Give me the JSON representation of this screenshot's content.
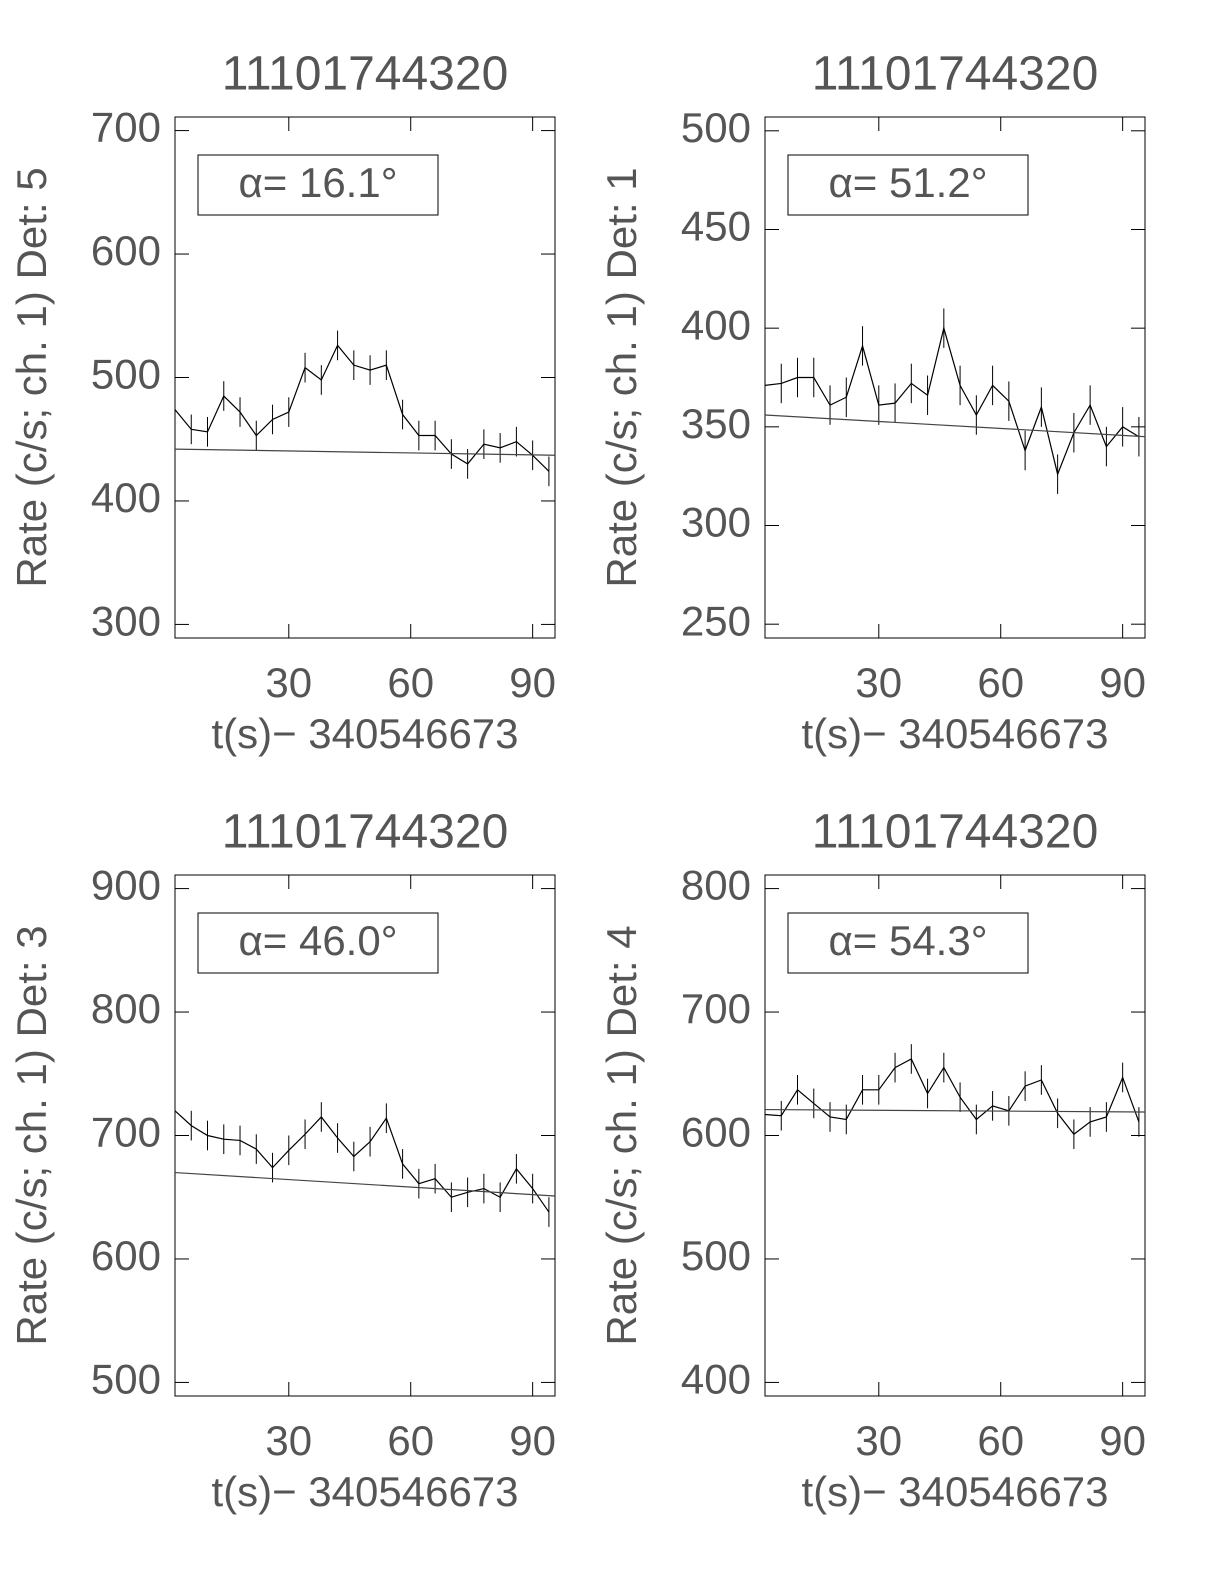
{
  "chart_data": [
    {
      "type": "line",
      "title": "11101744320",
      "x_label": "t(s)− 340546673",
      "y_label": "Rate (c/s; ch. 1) Det: 5",
      "annotation": "α=  16.1°",
      "x": [
        2,
        6,
        10,
        14,
        18,
        22,
        26,
        30,
        34,
        38,
        42,
        46,
        50,
        54,
        58,
        62,
        66,
        70,
        74,
        78,
        82,
        86,
        90,
        94
      ],
      "series": [
        {
          "color": "#000000",
          "values": [
            474,
            458,
            456,
            485,
            472,
            453,
            466,
            472,
            508,
            498,
            526,
            510,
            506,
            510,
            470,
            453,
            453,
            438,
            430,
            446,
            443,
            448,
            437,
            424
          ],
          "errors": [
            12,
            12,
            12,
            12,
            12,
            12,
            12,
            12,
            12,
            12,
            12,
            12,
            12,
            12,
            12,
            12,
            12,
            12,
            12,
            12,
            12,
            12,
            12,
            12
          ]
        },
        {
          "color": "#444444",
          "x": [
            2,
            95.5
          ],
          "values": [
            442,
            437
          ]
        }
      ],
      "xlim": [
        2,
        95.5
      ],
      "ylim": [
        289,
        711
      ],
      "xticks": [
        30,
        60,
        90
      ],
      "yticks": [
        300,
        400,
        500,
        600,
        700
      ]
    },
    {
      "type": "line",
      "title": "11101744320",
      "x_label": "t(s)− 340546673",
      "y_label": "Rate (c/s; ch. 1) Det: 1",
      "annotation": "α=  51.2°",
      "x": [
        2,
        6,
        10,
        14,
        18,
        22,
        26,
        30,
        34,
        38,
        42,
        46,
        50,
        54,
        58,
        62,
        66,
        70,
        74,
        78,
        82,
        86,
        90,
        94
      ],
      "series": [
        {
          "color": "#000000",
          "values": [
            371,
            372,
            375,
            375,
            361,
            365,
            391,
            361,
            362,
            372,
            366,
            400,
            371,
            356,
            371,
            363,
            338,
            360,
            326,
            347,
            361,
            340,
            350,
            345
          ],
          "errors": [
            10,
            10,
            10,
            10,
            10,
            10,
            10,
            10,
            10,
            10,
            10,
            10,
            10,
            10,
            10,
            10,
            10,
            10,
            10,
            10,
            10,
            10,
            10,
            10
          ]
        },
        {
          "color": "#444444",
          "x": [
            2,
            95.5
          ],
          "values": [
            356,
            345
          ]
        }
      ],
      "xlim": [
        2,
        95.5
      ],
      "ylim": [
        243,
        507
      ],
      "xticks": [
        30,
        60,
        90
      ],
      "yticks": [
        250,
        300,
        350,
        400,
        450,
        500
      ]
    },
    {
      "type": "line",
      "title": "11101744320",
      "x_label": "t(s)− 340546673",
      "y_label": "Rate (c/s; ch. 1) Det: 3",
      "annotation": "α=  46.0°",
      "x": [
        2,
        6,
        10,
        14,
        18,
        22,
        26,
        30,
        34,
        38,
        42,
        46,
        50,
        54,
        58,
        62,
        66,
        70,
        74,
        78,
        82,
        86,
        90,
        94
      ],
      "series": [
        {
          "color": "#000000",
          "values": [
            720,
            708,
            700,
            697,
            696,
            689,
            674,
            688,
            701,
            715,
            698,
            683,
            695,
            714,
            677,
            661,
            665,
            650,
            654,
            657,
            650,
            673,
            657,
            638
          ],
          "errors": [
            12,
            12,
            12,
            12,
            12,
            12,
            12,
            12,
            12,
            12,
            12,
            12,
            12,
            12,
            12,
            12,
            12,
            12,
            12,
            12,
            12,
            12,
            12,
            12
          ]
        },
        {
          "color": "#444444",
          "x": [
            2,
            95.5
          ],
          "values": [
            670,
            651
          ]
        }
      ],
      "xlim": [
        2,
        95.5
      ],
      "ylim": [
        489,
        911
      ],
      "xticks": [
        30,
        60,
        90
      ],
      "yticks": [
        500,
        600,
        700,
        800,
        900
      ]
    },
    {
      "type": "line",
      "title": "11101744320",
      "x_label": "t(s)− 340546673",
      "y_label": "Rate (c/s; ch. 1) Det: 4",
      "annotation": "α=  54.3°",
      "x": [
        2,
        6,
        10,
        14,
        18,
        22,
        26,
        30,
        34,
        38,
        42,
        46,
        50,
        54,
        58,
        62,
        66,
        70,
        74,
        78,
        82,
        86,
        90,
        94
      ],
      "series": [
        {
          "color": "#000000",
          "values": [
            617,
            616,
            637,
            626,
            615,
            613,
            637,
            637,
            655,
            662,
            634,
            655,
            631,
            613,
            624,
            620,
            640,
            645,
            618,
            601,
            611,
            615,
            647,
            611
          ],
          "errors": [
            12,
            12,
            12,
            12,
            12,
            12,
            12,
            12,
            12,
            12,
            12,
            12,
            12,
            12,
            12,
            12,
            12,
            12,
            12,
            12,
            12,
            12,
            12,
            12
          ]
        },
        {
          "color": "#444444",
          "x": [
            2,
            95.5
          ],
          "values": [
            621,
            619
          ]
        }
      ],
      "xlim": [
        2,
        95.5
      ],
      "ylim": [
        389,
        811
      ],
      "xticks": [
        30,
        60,
        90
      ],
      "yticks": [
        400,
        500,
        600,
        700,
        800
      ]
    }
  ]
}
